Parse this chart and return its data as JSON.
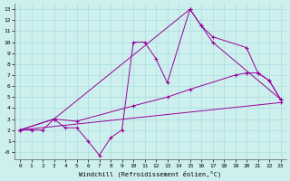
{
  "xlabel": "Windchill (Refroidissement éolien,°C)",
  "background_color": "#cdf0ee",
  "grid_color": "#aadddd",
  "line_color": "#990099",
  "xlim": [
    -0.5,
    23.5
  ],
  "ylim": [
    -0.7,
    13.5
  ],
  "xticks": [
    0,
    1,
    2,
    3,
    4,
    5,
    6,
    7,
    8,
    9,
    10,
    11,
    12,
    13,
    14,
    15,
    16,
    17,
    18,
    19,
    20,
    21,
    22,
    23
  ],
  "yticks": [
    0,
    1,
    2,
    3,
    4,
    5,
    6,
    7,
    8,
    9,
    10,
    11,
    12,
    13
  ],
  "ytick_labels": [
    "-0",
    "1",
    "2",
    "3",
    "4",
    "5",
    "6",
    "7",
    "8",
    "9",
    "10",
    "11",
    "12",
    "13"
  ],
  "line1_x": [
    0,
    1,
    2,
    3,
    4,
    5,
    6,
    7,
    8,
    9,
    10,
    11,
    12,
    13,
    15,
    16,
    17,
    20,
    21,
    22,
    23
  ],
  "line1_y": [
    2,
    2,
    2,
    3,
    2.2,
    2.2,
    1.0,
    -0.3,
    1.3,
    2.0,
    10.0,
    10.0,
    8.5,
    6.3,
    13.0,
    11.5,
    10.5,
    9.5,
    7.2,
    6.5,
    4.8
  ],
  "line2_x": [
    0,
    3,
    15,
    16,
    17,
    23
  ],
  "line2_y": [
    2,
    3,
    13,
    11.5,
    10.0,
    4.8
  ],
  "line3_x": [
    0,
    3,
    5,
    10,
    13,
    15,
    19,
    20,
    21,
    22,
    23
  ],
  "line3_y": [
    2,
    3,
    2.8,
    4.2,
    5.0,
    5.7,
    7.0,
    7.2,
    7.2,
    6.5,
    4.8
  ],
  "line4_x": [
    0,
    23
  ],
  "line4_y": [
    2,
    4.5
  ]
}
